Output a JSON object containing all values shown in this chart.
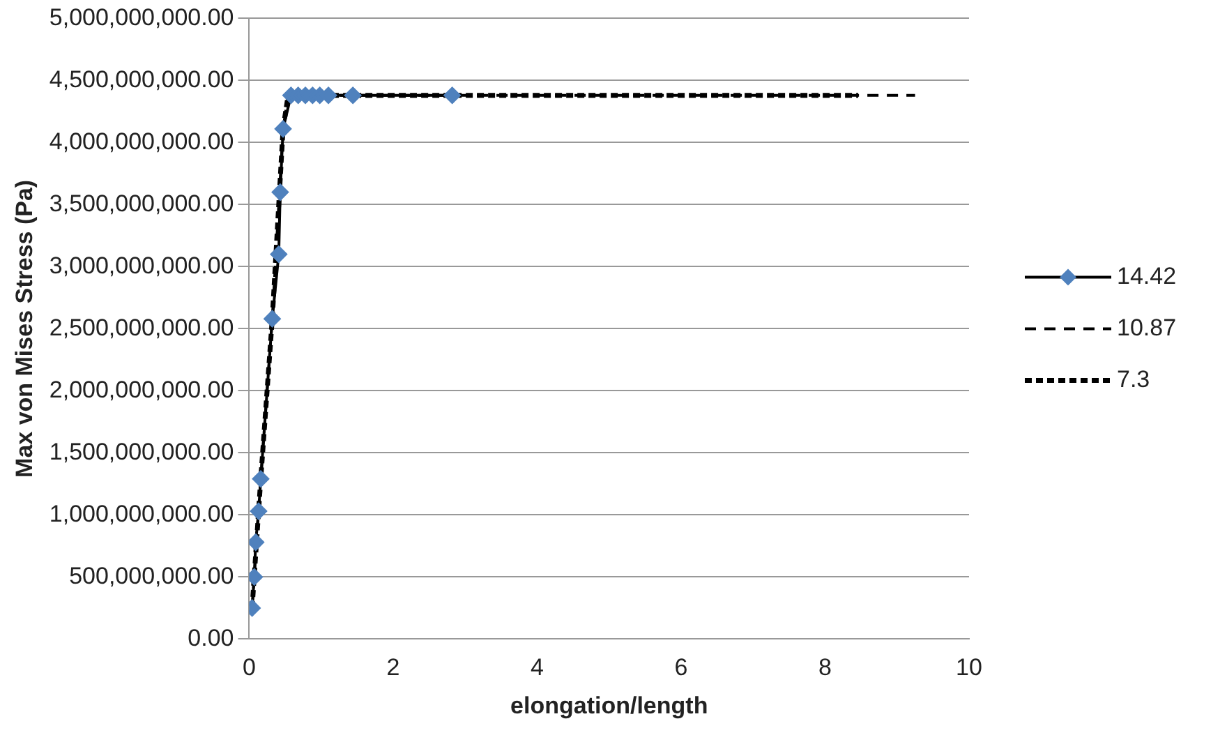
{
  "chart_data": {
    "type": "line",
    "xlabel": "elongation/length",
    "ylabel": "Max von Mises Stress (Pa)",
    "xlim": [
      0,
      10
    ],
    "xticks": [
      0,
      2,
      4,
      6,
      8,
      10
    ],
    "ylim": [
      0,
      5000000000
    ],
    "yticks": [
      {
        "value": 0,
        "label": "0.00"
      },
      {
        "value": 500000000,
        "label": "500,000,000.00"
      },
      {
        "value": 1000000000,
        "label": "1,000,000,000.00"
      },
      {
        "value": 1500000000,
        "label": "1,500,000,000.00"
      },
      {
        "value": 2000000000,
        "label": "2,000,000,000.00"
      },
      {
        "value": 2500000000,
        "label": "2,500,000,000.00"
      },
      {
        "value": 3000000000,
        "label": "3,000,000,000.00"
      },
      {
        "value": 3500000000,
        "label": "3,500,000,000.00"
      },
      {
        "value": 4000000000,
        "label": "4,000,000,000.00"
      },
      {
        "value": 4500000000,
        "label": "4,500,000,000.00"
      },
      {
        "value": 5000000000,
        "label": "5,000,000,000.00"
      }
    ],
    "grid": "y",
    "legend": "right",
    "series": [
      {
        "name": "14.42",
        "color": "#000000",
        "marker": "diamond",
        "line_style": "solid",
        "x": [
          0.04,
          0.07,
          0.09,
          0.13,
          0.16,
          0.32,
          0.41,
          0.43,
          0.47,
          0.58,
          0.68,
          0.78,
          0.88,
          0.98,
          1.1,
          1.44,
          2.82
        ],
        "values": [
          250000000,
          500000000,
          780000000,
          1030000000,
          1290000000,
          2580000000,
          3100000000,
          3600000000,
          4110000000,
          4380000000,
          4380000000,
          4380000000,
          4380000000,
          4380000000,
          4380000000,
          4380000000,
          4380000000
        ]
      },
      {
        "name": "10.87",
        "color": "#000000",
        "marker": "none",
        "line_style": "dashed",
        "x": [
          0.04,
          0.16,
          0.32,
          0.47,
          0.54,
          9.25
        ],
        "values": [
          250000000,
          1290000000,
          2580000000,
          4110000000,
          4380000000,
          4380000000
        ]
      },
      {
        "name": "7.3",
        "color": "#000000",
        "marker": "none",
        "line_style": "dotted",
        "x": [
          0.04,
          0.16,
          0.32,
          0.47,
          0.54,
          8.46
        ],
        "values": [
          250000000,
          1290000000,
          2580000000,
          4110000000,
          4380000000,
          4380000000
        ]
      }
    ]
  }
}
